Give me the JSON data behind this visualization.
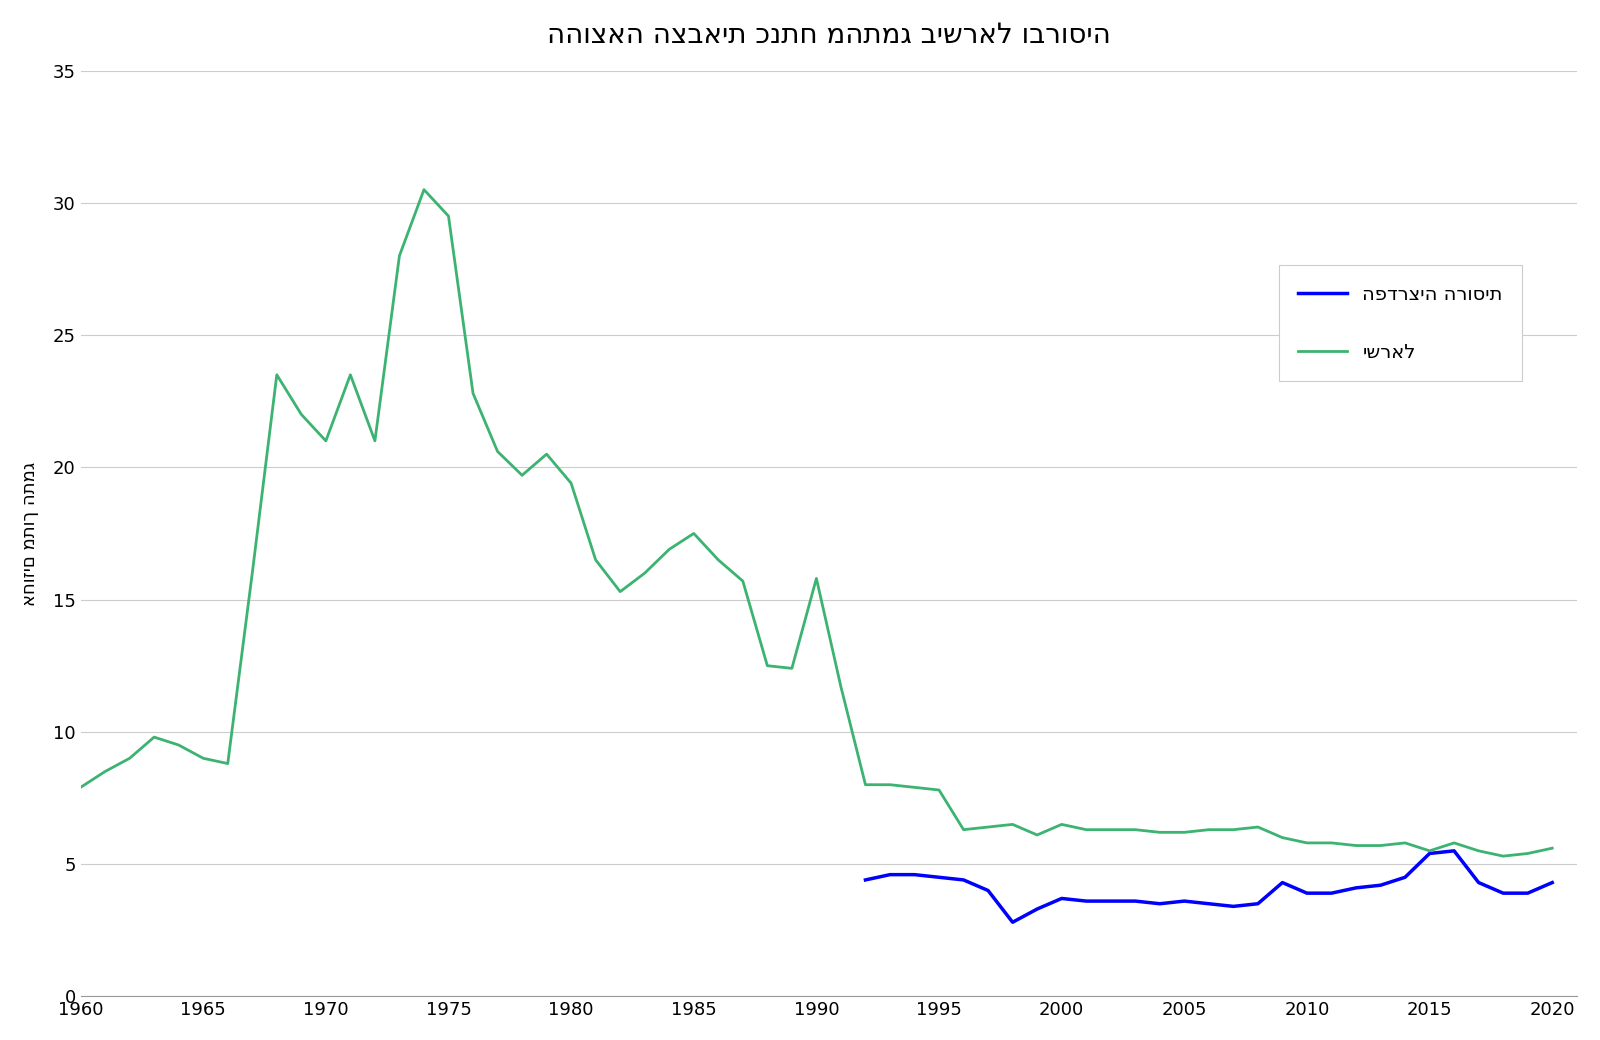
{
  "title": "ההוצאה הצבאית כנתח מהתמג בישראל וברוסיה",
  "ylabel": "אחוזים מתוך התמג",
  "legend_russia": "הפדרציה הרוסית",
  "legend_israel": "ישראל",
  "russia_color": "#0000FF",
  "israel_color": "#3CB371",
  "background_color": "#FFFFFF",
  "ylim": [
    0,
    35
  ],
  "yticks": [
    0,
    5,
    10,
    15,
    20,
    25,
    30,
    35
  ],
  "xlim": [
    1960,
    2021
  ],
  "xticks": [
    1960,
    1965,
    1970,
    1975,
    1980,
    1985,
    1990,
    1995,
    2000,
    2005,
    2010,
    2015,
    2020
  ],
  "israel_years": [
    1960,
    1961,
    1962,
    1963,
    1964,
    1965,
    1966,
    1967,
    1968,
    1969,
    1970,
    1971,
    1972,
    1973,
    1974,
    1975,
    1976,
    1977,
    1978,
    1979,
    1980,
    1981,
    1982,
    1983,
    1984,
    1985,
    1986,
    1987,
    1988,
    1989,
    1990,
    1991,
    1992,
    1993,
    1994,
    1995,
    1996,
    1997,
    1998,
    1999,
    2000,
    2001,
    2002,
    2003,
    2004,
    2005,
    2006,
    2007,
    2008,
    2009,
    2010,
    2011,
    2012,
    2013,
    2014,
    2015,
    2016,
    2017,
    2018,
    2019,
    2020
  ],
  "israel_values": [
    7.9,
    8.5,
    9.0,
    9.8,
    9.5,
    9.0,
    8.8,
    16.0,
    23.5,
    22.0,
    21.0,
    23.5,
    21.0,
    28.0,
    30.5,
    29.5,
    22.8,
    20.6,
    19.7,
    20.5,
    19.4,
    16.5,
    15.3,
    16.0,
    16.9,
    17.5,
    16.5,
    15.7,
    12.5,
    12.4,
    15.8,
    11.7,
    8.0,
    8.0,
    7.9,
    7.8,
    6.3,
    6.4,
    6.5,
    6.1,
    6.5,
    6.3,
    6.3,
    6.3,
    6.2,
    6.2,
    6.3,
    6.3,
    6.4,
    6.0,
    5.8,
    5.8,
    5.7,
    5.7,
    5.8,
    5.5,
    5.8,
    5.5,
    5.3,
    5.4,
    5.6
  ],
  "russia_years": [
    1992,
    1993,
    1994,
    1995,
    1996,
    1997,
    1998,
    1999,
    2000,
    2001,
    2002,
    2003,
    2004,
    2005,
    2006,
    2007,
    2008,
    2009,
    2010,
    2011,
    2012,
    2013,
    2014,
    2015,
    2016,
    2017,
    2018,
    2019,
    2020
  ],
  "russia_values": [
    4.4,
    4.6,
    4.6,
    4.5,
    4.4,
    4.0,
    2.8,
    3.3,
    3.7,
    3.6,
    3.6,
    3.6,
    3.5,
    3.6,
    3.5,
    3.4,
    3.5,
    4.3,
    3.9,
    3.9,
    4.1,
    4.2,
    4.5,
    5.4,
    5.5,
    4.3,
    3.9,
    3.9,
    4.3
  ]
}
